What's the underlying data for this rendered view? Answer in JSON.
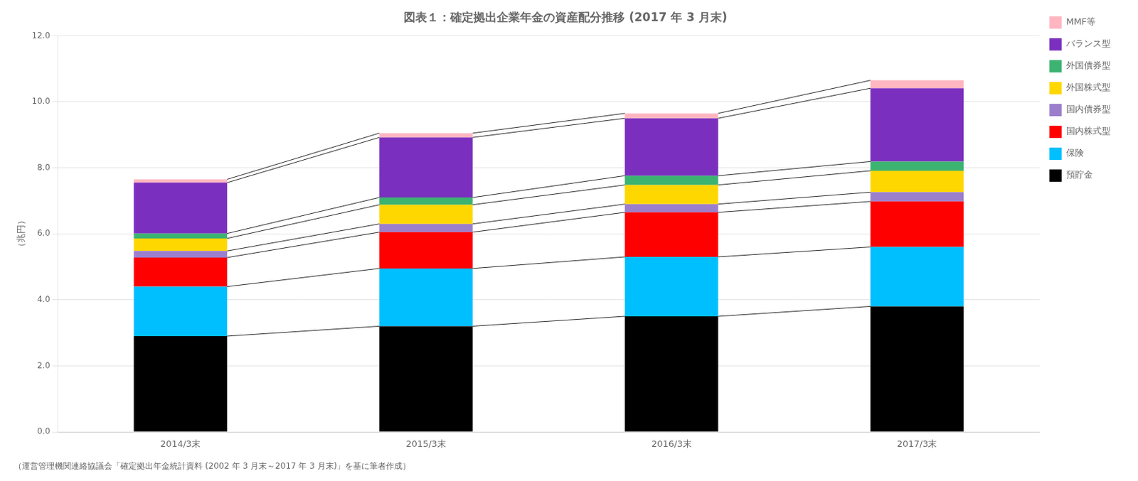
{
  "chart_data": {
    "type": "bar",
    "stacked": true,
    "title": "図表１：確定拠出企業年金の資産配分推移 (2017 年 3 月末)",
    "ylabel": "（兆円）",
    "footnote": "（運営管理機関連絡協議会「確定拠出年金統計資料 (2002 年 3 月末～2017 年 3 月末)」を基に筆者作成）",
    "categories": [
      "2014/3末",
      "2015/3末",
      "2016/3末",
      "2017/3末"
    ],
    "series": [
      {
        "name": "預貯金",
        "color": "#000000",
        "values": [
          2.9,
          3.2,
          3.5,
          3.8
        ]
      },
      {
        "name": "保険",
        "color": "#00BFFF",
        "values": [
          1.5,
          1.75,
          1.8,
          1.8
        ]
      },
      {
        "name": "国内株式型",
        "color": "#FF0000",
        "values": [
          0.88,
          1.1,
          1.35,
          1.38
        ]
      },
      {
        "name": "国内債券型",
        "color": "#9B7FCC",
        "values": [
          0.2,
          0.25,
          0.25,
          0.28
        ]
      },
      {
        "name": "外国株式型",
        "color": "#FFD700",
        "values": [
          0.38,
          0.58,
          0.58,
          0.65
        ]
      },
      {
        "name": "外国債券型",
        "color": "#3CB371",
        "values": [
          0.15,
          0.22,
          0.28,
          0.28
        ]
      },
      {
        "name": "バランス型",
        "color": "#7B2FBE",
        "values": [
          1.54,
          1.82,
          1.74,
          2.22
        ]
      },
      {
        "name": "MMF等",
        "color": "#FFB6C1",
        "values": [
          0.1,
          0.13,
          0.15,
          0.24
        ]
      }
    ],
    "ylim": [
      0,
      12.0
    ],
    "yticks": [
      {
        "value": 0.0,
        "label": "0.0"
      },
      {
        "value": 2.0,
        "label": "2.0"
      },
      {
        "value": 4.0,
        "label": "4.0"
      },
      {
        "value": 6.0,
        "label": "6.0"
      },
      {
        "value": 8.0,
        "label": "8.0"
      },
      {
        "value": 10.0,
        "label": "10.0"
      },
      {
        "value": 12.0,
        "label": "12.0"
      }
    ],
    "grid": true,
    "legend": "right"
  }
}
